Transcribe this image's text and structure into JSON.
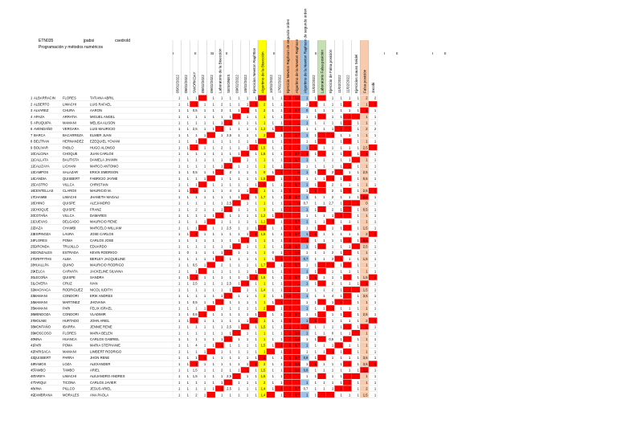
{
  "doc": {
    "group": "ETN035",
    "surname": "jpabsi",
    "login": "csedrold",
    "subtitle": "Programación y métodos numéricos",
    "sections": [
      "I",
      "II",
      "SI",
      "II",
      "I",
      "II",
      "I",
      "II",
      "I",
      "II",
      "I",
      "II"
    ]
  },
  "columns": [
    "05/02/2022",
    "08/02/2022",
    "SWORKDAY",
    "08/02/2022",
    "09/02/2022",
    "Laboratorio de la Bisección",
    "SESIONES",
    "09/02/2022",
    "18/02/2022",
    "Ejercicios Newton Raphson",
    "Algoritmo de la Bisección",
    "10/02/2022",
    "17/02/2022",
    "Ejercicio Newton Raphson de segundo orden",
    "Algoritmo de la Newton Raphson",
    "Algoritmo de la Newton Raphson de segundo orden",
    "11/02/2022",
    "Laboratorio Falsa posición",
    "Ejercicio de Falsa posición",
    "11/02/2022",
    "11/02/2022",
    "Ejercicios Gauss Seidel",
    "Falsa posición",
    "Jacobi"
  ],
  "column_colors": {
    "yellow": "#ffff00",
    "red": "#ff0000",
    "orange": "#f4b183",
    "green": "#c6e0b4",
    "blue": "#9dc3e6",
    "purple": "#b4a7d6",
    "light_orange": "#f8cbad"
  },
  "rows": [
    [
      "1",
      "ALBARRACIN",
      "FLORES",
      "TATIANA ABRIL"
    ],
    [
      "2",
      "ALBERTO",
      "LIMACHI",
      "LUIS RAFAEL"
    ],
    [
      "3",
      "ALVAREZ",
      "CHURA",
      "AARON"
    ],
    [
      "4",
      "APAZA",
      "ARRATIA",
      "MIGUEL ANGEL"
    ],
    [
      "5",
      "ARUQUIPA",
      "MAMANI",
      "MELISA ALISON"
    ],
    [
      "6",
      "AVENDAÑO",
      "VERGARA",
      "LUIS MAURICIO"
    ],
    [
      "7",
      "BARCA",
      "BACARREZA",
      "ELMER JUAN"
    ],
    [
      "8",
      "BELTRAN",
      "HERNANDEZ",
      "EZEQUIEL YOVANI"
    ],
    [
      "9",
      "BOLIVAR",
      "PABLO",
      "HUGO ALONSO"
    ],
    [
      "10",
      "CALCINA",
      "CHOQUE",
      "JUAN CARLOS"
    ],
    [
      "11",
      "CALLATA",
      "BAUTISTA",
      "DANIELA JHANIN"
    ],
    [
      "12",
      "CALIZAYA",
      "LICHANI",
      "MARCO ANTONIO"
    ],
    [
      "13",
      "CAMPOS",
      "SALAZAR",
      "ERICK EMERSON"
    ],
    [
      "14",
      "CANDIA",
      "QUISBERT",
      "FABRICIO JAYME"
    ],
    [
      "15",
      "CASTRO",
      "VILLCA",
      "CHRISTIAN"
    ],
    [
      "16",
      "CENTELLAS",
      "CLAROS",
      "MAURICIO M."
    ],
    [
      "17",
      "CHAMBI",
      "LIMACHI",
      "JHANETH MAGALI"
    ],
    [
      "18",
      "CHINO",
      "QUISPE",
      "ALEJANDRO"
    ],
    [
      "19",
      "CHOQUE",
      "QUISPE",
      "FRANZ"
    ],
    [
      "20",
      "COTAÑA",
      "VILLCA",
      "DAMARES"
    ],
    [
      "21",
      "CUEVAS",
      "DELGADO",
      "MAURICIO RENE"
    ],
    [
      "22",
      "DAZA",
      "CHAMBI",
      "MARCELO WILLIAM"
    ],
    [
      "23",
      "ESPINOZA",
      "LAURA",
      "JOSE CARLOS"
    ],
    [
      "24",
      "FLORES",
      "POMA",
      "CARLOS JOSE"
    ],
    [
      "25",
      "GIRONDA",
      "TRUJILLO",
      "EDUARDO"
    ],
    [
      "26",
      "GONZALES",
      "ESTRADA",
      "KEVIN RODRIGO"
    ],
    [
      "27",
      "GRIFFITHS",
      "ALBA",
      "BERLEY JACQUELINE"
    ],
    [
      "28",
      "HUALLPA",
      "QUINO",
      "MAURICIO RODRIGO"
    ],
    [
      "29",
      "KELCA",
      "CARVATA",
      "JACKELINE SILVANA"
    ],
    [
      "30",
      "LECOÑA",
      "QUISPE",
      "SANDRA"
    ],
    [
      "31",
      "LOVERA",
      "CRUZ",
      "IVAN"
    ],
    [
      "32",
      "MACHACA",
      "RODRIGUEZ",
      "NICOL IUDITH"
    ],
    [
      "33",
      "MAMANI",
      "CONDORI",
      "ERIK ANDRES"
    ],
    [
      "34",
      "MAMANI",
      "MARTINEZ",
      "JHOVANA"
    ],
    [
      "35",
      "MAMANI",
      "PARI",
      "FELIX ISRAEL"
    ],
    [
      "36",
      "MENDOZA",
      "CONDORI",
      "VLADIMIR"
    ],
    [
      "37",
      "MOLNIE",
      "HURTADO",
      "JOHN ARIEL"
    ],
    [
      "38",
      "MONTAÑO",
      "IBARRA",
      "JENNIE RENE"
    ],
    [
      "39",
      "MOSCOSO",
      "FLORES",
      "MARIA BELEN"
    ],
    [
      "40",
      "NINA",
      "HUANCA",
      "CARLOS GABRIEL"
    ],
    [
      "41",
      "PARI",
      "POMA",
      "MARIA STEPHANIE"
    ],
    [
      "42",
      "PARISACA",
      "MAMANI",
      "LIMBERT RODRIGO"
    ],
    [
      "43",
      "QUISBERT",
      "PARRA",
      "JHON RENE"
    ],
    [
      "44",
      "RAMOS",
      "LOZA",
      "ALEXANDER"
    ],
    [
      "45",
      "TAMBO",
      "TAMBO",
      "ARIEL"
    ],
    [
      "46",
      "TARIFA",
      "LIMACHI",
      "ALEJANDRO ANDRES"
    ],
    [
      "47",
      "TARQUI",
      "TICONA",
      "CARLOS JAVIER"
    ],
    [
      "48",
      "VINA",
      "PILLCO",
      "JESUS ARIEL"
    ],
    [
      "49",
      "ZAMBRANA",
      "MORALES",
      "ANA PAOLA"
    ]
  ],
  "grades": [
    [
      "1",
      "1",
      "1",
      "1",
      "1",
      "1",
      "1",
      "1",
      "1",
      "1",
      "1,2",
      "1",
      "1",
      "0",
      "0,8",
      "1",
      "1",
      "1",
      "1",
      "1",
      "1",
      "1",
      "2",
      "2"
    ],
    [
      "1",
      "1",
      "1",
      "1",
      "1",
      "2",
      "1",
      "1",
      "1",
      "1",
      "2",
      "1",
      "1",
      "1",
      "1",
      "1",
      "1",
      "1",
      "1",
      "1",
      "1",
      "2",
      "1",
      "1"
    ],
    [
      "1",
      "1",
      "0,5",
      "1",
      "1",
      "2",
      "1",
      "1",
      "1",
      "1",
      "2",
      "1",
      "1",
      "1",
      "0,7",
      "0",
      "1",
      "1",
      "1",
      "1",
      "1",
      "1",
      "1",
      "1"
    ],
    [
      "1",
      "1",
      "1",
      "1",
      "1",
      "1",
      "1",
      "1",
      "1",
      "1",
      "1",
      "1",
      "1",
      "1",
      "1",
      "1",
      "1",
      "1",
      "1",
      "1",
      "1",
      "1",
      "1",
      "1"
    ],
    [
      "1",
      "1",
      "1",
      "1",
      "1",
      "1",
      "1",
      "1",
      "1",
      "1",
      "1",
      "1",
      "1",
      "1",
      "1",
      "1",
      "1",
      "1",
      "1",
      "1",
      "1",
      "1",
      "1",
      "1"
    ],
    [
      "1",
      "1",
      "2,5",
      "1",
      "1",
      "1",
      "1",
      "1",
      "1",
      "1",
      "1,3",
      "1",
      "1",
      "1",
      "1",
      "1",
      "1",
      "1",
      "1",
      "1",
      "1",
      "1",
      "2",
      "2"
    ],
    [
      "1",
      "1",
      "1",
      "1",
      "1",
      "1",
      "2,5",
      "1",
      "1",
      "1",
      "2",
      "1",
      "1",
      "1",
      "0,7",
      "1",
      "1",
      "1",
      "1",
      "1",
      "1",
      "1",
      "1",
      "1"
    ],
    [
      "1",
      "1",
      "1",
      "1",
      "1",
      "1",
      "1",
      "1",
      "1",
      "1",
      "1",
      "1",
      "1",
      "1",
      "1",
      "1",
      "1",
      "1",
      "1",
      "1",
      "1",
      "1",
      "1",
      "1"
    ],
    [
      "1",
      "1",
      "1",
      "1",
      "1",
      "2",
      "1",
      "1",
      "1",
      "1",
      "1,5",
      "1",
      "1",
      "1",
      "1",
      "1",
      "1",
      "1",
      "1",
      "1",
      "1",
      "1",
      "2,5",
      "1"
    ],
    [
      "1",
      "1",
      "1",
      "1",
      "1",
      "1",
      "1",
      "1",
      "1",
      "1",
      "1,5",
      "1",
      "1",
      "1",
      "0,7",
      "1",
      "1",
      "1",
      "1",
      "1",
      "1",
      "1",
      "1",
      "1"
    ],
    [
      "1",
      "1",
      "1",
      "1",
      "1",
      "1",
      "1",
      "1",
      "1",
      "1",
      "1",
      "1",
      "1",
      "1",
      "0,7",
      "1",
      "1",
      "1",
      "1",
      "1",
      "1",
      "1",
      "1",
      "1"
    ],
    [
      "1",
      "1",
      "1",
      "1",
      "1",
      "1",
      "1",
      "1",
      "1",
      "1",
      "1",
      "1",
      "1",
      "1",
      "1",
      "1",
      "1",
      "1",
      "1",
      "1",
      "1",
      "1",
      "1",
      "1"
    ],
    [
      "1",
      "1",
      "0,5",
      "1",
      "1",
      "1",
      "2",
      "1",
      "1",
      "1",
      "0",
      "1",
      "1",
      "1",
      "0",
      "1",
      "1",
      "1",
      "2",
      "1",
      "1",
      "1",
      "2,5",
      "1"
    ],
    [
      "1",
      "1",
      "1",
      "1",
      "1",
      "1",
      "1",
      "1",
      "1",
      "1",
      "1,5",
      "1",
      "1",
      "1",
      "0,7",
      "1",
      "1",
      "1",
      "2",
      "1",
      "1",
      "1",
      "0,5",
      "1"
    ],
    [
      "1",
      "1",
      "1",
      "1",
      "1",
      "1",
      "1",
      "1",
      "1",
      "1",
      "1,5",
      "1",
      "1",
      "1",
      "0,7",
      "1",
      "1",
      "1",
      "2",
      "1",
      "1",
      "1",
      "1",
      "1"
    ],
    [
      "1",
      "1",
      "1,5",
      "1",
      "1",
      "1",
      "4",
      "1",
      "1",
      "1",
      "1",
      "1",
      "1",
      "1",
      "1",
      "1",
      "1",
      "1",
      "2",
      "1",
      "1",
      "1",
      "2,5",
      "1"
    ],
    [
      "1",
      "1",
      "1",
      "1",
      "1",
      "1",
      "1",
      "1",
      "1",
      "1",
      "1,7",
      "1",
      "1",
      "1,5",
      "0,7",
      "1",
      "1",
      "1",
      "2",
      "1",
      "1",
      "1",
      "2,5",
      "1"
    ],
    [
      "1",
      "1",
      "1",
      "1",
      "1",
      "1",
      "2,5",
      "1",
      "1",
      "1",
      "1",
      "1",
      "1",
      "2",
      "0",
      "0,7",
      "1",
      "1",
      "2,7",
      "1",
      "1",
      "1",
      "0",
      "1"
    ],
    [
      "1",
      "1",
      "2",
      "1",
      "1",
      "1",
      "1",
      "1",
      "1",
      "1",
      "3",
      "1",
      "1",
      "1",
      "1",
      "1",
      "1",
      "1",
      "2",
      "1",
      "1",
      "1",
      "0,5",
      "1"
    ],
    [
      "1",
      "1",
      "1",
      "1",
      "1",
      "1",
      "1",
      "1",
      "1",
      "1",
      "1,2",
      "1",
      "1",
      "1",
      "1",
      "1",
      "1",
      "1",
      "1",
      "1",
      "1",
      "1",
      "1",
      "1"
    ],
    [
      "1",
      "1",
      "1",
      "1",
      "1",
      "1",
      "1",
      "1",
      "1",
      "1",
      "1,1",
      "1",
      "1",
      "1",
      "0,7",
      "1",
      "1",
      "1",
      "2",
      "1",
      "1",
      "1",
      "1",
      "1"
    ],
    [
      "1",
      "1",
      "1",
      "1",
      "1",
      "1",
      "2,5",
      "1",
      "1",
      "1",
      "1,5",
      "1",
      "1",
      "1",
      "0,7",
      "1",
      "1",
      "1",
      "1",
      "1",
      "1",
      "1",
      "1,5",
      "1"
    ],
    [
      "1",
      "1",
      "1",
      "1",
      "1",
      "1",
      "1",
      "1",
      "1",
      "1",
      "1,5",
      "1",
      "1",
      "1",
      "0,7",
      "1",
      "1",
      "1",
      "1",
      "1",
      "1",
      "1",
      "2",
      "1"
    ],
    [
      "1",
      "1",
      "1",
      "1",
      "1",
      "1",
      "1",
      "1",
      "1",
      "1",
      "1",
      "1",
      "1",
      "1",
      "1",
      "1",
      "1",
      "1",
      "1",
      "1",
      "1",
      "1",
      "0,5",
      "1"
    ],
    [
      "1",
      "1",
      "1",
      "1",
      "1",
      "1",
      "1",
      "1",
      "1",
      "1",
      "1",
      "1",
      "1",
      "1,5",
      "0,7",
      "1",
      "1",
      "1",
      "1",
      "1",
      "1",
      "1",
      "2,5",
      "1"
    ],
    [
      "1",
      "0",
      "1",
      "1",
      "1",
      "1",
      "2,5",
      "1",
      "1",
      "1",
      "1",
      "0",
      "1",
      "1",
      "0,8",
      "1",
      "1",
      "1",
      "2",
      "1",
      "1",
      "1",
      "1",
      "1"
    ],
    [
      "1",
      "1",
      "1",
      "1",
      "1",
      "1",
      "1",
      "1",
      "1",
      "1",
      "1",
      "1",
      "1",
      "1",
      "0,7",
      "0,7",
      "1",
      "1",
      "2",
      "1",
      "1",
      "1",
      "1,5",
      "1"
    ],
    [
      "1",
      "1",
      "0,5",
      "1",
      "1",
      "2",
      "1",
      "1",
      "1",
      "1",
      "1,7",
      "1",
      "1",
      "1",
      "0,7",
      "1",
      "1",
      "1",
      "2",
      "1",
      "1",
      "1",
      "1",
      "1"
    ],
    [
      "1",
      "1",
      "1",
      "1",
      "1",
      "1",
      "1",
      "1",
      "1",
      "1",
      "1",
      "1",
      "1",
      "1",
      "1",
      "1",
      "1",
      "1",
      "1",
      "1",
      "1",
      "1",
      "1",
      "1"
    ],
    [
      "1",
      "1",
      "1",
      "1",
      "1",
      "1",
      "1",
      "1",
      "1",
      "1",
      "1,5",
      "1",
      "1",
      "1",
      "0,7",
      "1",
      "1",
      "1",
      "1",
      "1",
      "1",
      "1",
      "1,5",
      "1"
    ],
    [
      "1",
      "1",
      "2,5",
      "1",
      "1",
      "1",
      "2,5",
      "1",
      "1",
      "1",
      "1",
      "1",
      "1",
      "1",
      "1",
      "1",
      "1",
      "1",
      "2",
      "1",
      "1",
      "1",
      "1",
      "1"
    ],
    [
      "1",
      "1",
      "1",
      "1",
      "1",
      "1",
      "1",
      "1",
      "1",
      "1",
      "1,4",
      "1",
      "1",
      "1",
      "1",
      "1",
      "1",
      "1",
      "2",
      "1",
      "1",
      "1",
      "1,5",
      "1"
    ],
    [
      "1",
      "1",
      "1",
      "1",
      "1",
      "1",
      "1",
      "1",
      "1",
      "1",
      "2",
      "1",
      "1",
      "3,5",
      "1",
      "1",
      "1",
      "1",
      "4",
      "1",
      "1",
      "1",
      "3,5",
      "1"
    ],
    [
      "1",
      "1",
      "0,5",
      "1",
      "1",
      "1",
      "1",
      "1",
      "1",
      "1",
      "1",
      "1",
      "1",
      "1",
      "1",
      "1",
      "1",
      "1",
      "1",
      "1",
      "1",
      "1",
      "1",
      "1"
    ],
    [
      "1",
      "1",
      "1",
      "1",
      "1",
      "1",
      "1",
      "1",
      "1",
      "1",
      "2",
      "1",
      "1",
      "1",
      "1",
      "1",
      "1",
      "1",
      "1",
      "1",
      "1",
      "1",
      "1",
      "1"
    ],
    [
      "1",
      "1",
      "0,5",
      "1",
      "1",
      "1",
      "1",
      "1",
      "1",
      "1",
      "1",
      "1",
      "1",
      "1",
      "0,7",
      "1",
      "1",
      "1",
      "1",
      "1",
      "1",
      "1",
      "2,5",
      "1"
    ],
    [
      "1",
      "1",
      "1",
      "1",
      "1",
      "1",
      "1",
      "1",
      "1",
      "1",
      "1",
      "1",
      "1",
      "1",
      "1",
      "1",
      "1",
      "1",
      "1",
      "1",
      "1",
      "1",
      "2",
      "1"
    ],
    [
      "1",
      "1",
      "1",
      "1",
      "1",
      "1",
      "2,5",
      "1",
      "1",
      "1",
      "1,5",
      "1",
      "1",
      "1",
      "1",
      "1",
      "1",
      "1",
      "1",
      "1",
      "1",
      "1",
      "2",
      "1"
    ],
    [
      "1",
      "1",
      "1",
      "1",
      "1",
      "1",
      "1",
      "1",
      "1",
      "1",
      "1",
      "1",
      "1",
      "1",
      "0,8",
      "1",
      "1",
      "1",
      "0",
      "1",
      "1",
      "1",
      "1",
      "1"
    ],
    [
      "1",
      "1",
      "1",
      "1",
      "1",
      "1",
      "2,5",
      "1",
      "1",
      "1",
      "1",
      "1",
      "1",
      "2",
      "0,8",
      "1",
      "1",
      "1",
      "0,5",
      "1",
      "1",
      "1",
      "1",
      "1"
    ],
    [
      "1",
      "1",
      "4",
      "1",
      "1",
      "1",
      "1",
      "1",
      "1",
      "1",
      "1,5",
      "1",
      "1",
      "2",
      "0,7",
      "1",
      "1",
      "1",
      "1",
      "1",
      "1",
      "1",
      "1",
      "1"
    ],
    [
      "1",
      "1",
      "1",
      "1",
      "1",
      "1",
      "1",
      "1",
      "1",
      "1",
      "1",
      "1",
      "1",
      "1",
      "1",
      "1",
      "1",
      "1",
      "1",
      "1",
      "1",
      "1",
      "1",
      "1"
    ],
    [
      "1",
      "1",
      "1",
      "1",
      "1",
      "1",
      "1",
      "1",
      "1",
      "1",
      "2",
      "1",
      "1",
      "1",
      "0,7",
      "0,8",
      "1",
      "1",
      "1",
      "1",
      "1",
      "1",
      "3,5",
      "1"
    ],
    [
      "1",
      "1",
      "1",
      "1",
      "1",
      "1",
      "1",
      "1",
      "1",
      "1",
      "2",
      "1",
      "1",
      "1",
      "0,8",
      "1",
      "1",
      "1",
      "1",
      "1",
      "1",
      "1",
      "3,5",
      "1"
    ],
    [
      "1",
      "1",
      "1,5",
      "1",
      "1",
      "2",
      "1",
      "1",
      "1",
      "1",
      "1,5",
      "1",
      "1",
      "1",
      "0,8",
      "0,8",
      "1",
      "1",
      "1",
      "1",
      "1",
      "1",
      "3,5",
      "1"
    ],
    [
      "1",
      "1",
      "1,5",
      "1",
      "1",
      "1",
      "2,5",
      "1",
      "1",
      "1",
      "1,5",
      "1",
      "1",
      "1",
      "1",
      "1",
      "1",
      "1",
      "1",
      "1",
      "1",
      "1",
      "1",
      "1"
    ],
    [
      "1",
      "1",
      "1",
      "1",
      "1",
      "1",
      "1",
      "1",
      "1",
      "1",
      "2",
      "1",
      "1",
      "2",
      "1",
      "1",
      "1",
      "1",
      "1",
      "1",
      "1",
      "1",
      "1",
      "1"
    ],
    [
      "1",
      "1",
      "1",
      "1",
      "1",
      "1",
      "2,5",
      "1",
      "1",
      "1",
      "1,4",
      "1",
      "1",
      "1",
      "0,7",
      "0,7",
      "1",
      "1",
      "1",
      "1",
      "1",
      "1",
      "2",
      "1"
    ],
    [
      "1",
      "1",
      "2",
      "1",
      "1",
      "1",
      "1",
      "1",
      "1",
      "1",
      "1,4",
      "1",
      "1",
      "1",
      "0,7",
      "1",
      "1",
      "1",
      "1",
      "1",
      "1",
      "1",
      "1,5",
      "1"
    ]
  ]
}
